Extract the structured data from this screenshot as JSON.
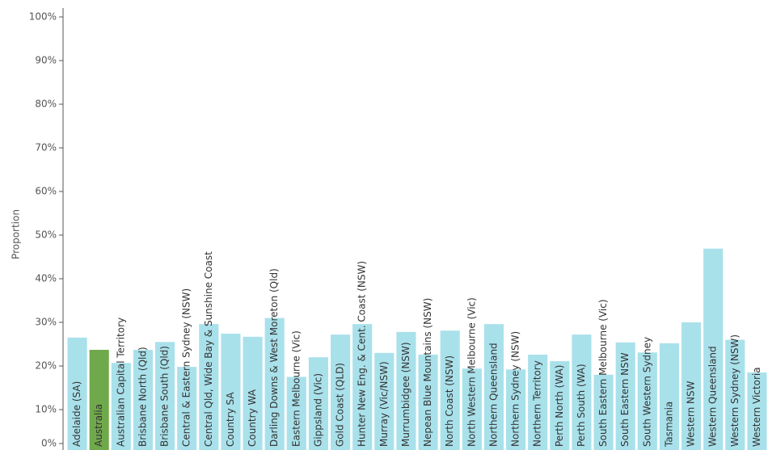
{
  "chart_data": {
    "type": "bar",
    "y_label": "Proportion",
    "categories": [
      "Adelaide (SA)",
      "Australia",
      "Australian Capital Territory",
      "Brisbane North (Qld)",
      "Brisbane South (Qld)",
      "Central & Eastern Sydney (NSW)",
      "Central Qld, Wide Bay & Sunshine Coast",
      "Country SA",
      "Country WA",
      "Darling Downs & West Moreton (Qld)",
      "Eastern Melbourne (Vic)",
      "Gippsland (Vic)",
      "Gold Coast (QLD)",
      "Hunter New Eng. & Cent. Coast (NSW)",
      "Murray (Vic/NSW)",
      "Murrumbidgee (NSW)",
      "Nepean Blue Mountains (NSW)",
      "North Coast (NSW)",
      "North Western Melbourne (Vic)",
      "Northern Queensland",
      "Northern Sydney (NSW)",
      "Northern Territory",
      "Perth North (WA)",
      "Perth South (WA)",
      "South Eastern Melbourne (Vic)",
      "South Eastern NSW",
      "South Western Sydney",
      "Tasmania",
      "Western NSW",
      "Western Queensland",
      "Western Sydney (NSW)",
      "Western Victoria"
    ],
    "values": [
      26.5,
      23.7,
      20.7,
      23.7,
      25.5,
      19.8,
      29.6,
      27.4,
      26.7,
      31,
      17.5,
      22,
      27.2,
      29.6,
      23,
      27.8,
      22.6,
      28.1,
      19.4,
      29.6,
      19.2,
      22.6,
      21.1,
      27.2,
      18,
      25.4,
      23.1,
      25.2,
      30,
      46.9,
      26,
      18.5
    ],
    "colors": [
      "#a9e1eb",
      "#70a94c",
      "#a9e1eb",
      "#a9e1eb",
      "#a9e1eb",
      "#a9e1eb",
      "#a9e1eb",
      "#a9e1eb",
      "#a9e1eb",
      "#a9e1eb",
      "#a9e1eb",
      "#a9e1eb",
      "#a9e1eb",
      "#a9e1eb",
      "#a9e1eb",
      "#a9e1eb",
      "#a9e1eb",
      "#a9e1eb",
      "#a9e1eb",
      "#a9e1eb",
      "#a9e1eb",
      "#a9e1eb",
      "#a9e1eb",
      "#a9e1eb",
      "#a9e1eb",
      "#a9e1eb",
      "#a9e1eb",
      "#a9e1eb",
      "#a9e1eb",
      "#a9e1eb",
      "#a9e1eb",
      "#a9e1eb"
    ],
    "ylim": [
      0,
      100
    ],
    "yticks": [
      {
        "value": 0,
        "label": "0%"
      },
      {
        "value": 10,
        "label": "10%"
      },
      {
        "value": 20,
        "label": "20%"
      },
      {
        "value": 30,
        "label": "30%"
      },
      {
        "value": 40,
        "label": "40%"
      },
      {
        "value": 50,
        "label": "50%"
      },
      {
        "value": 60,
        "label": "60%"
      },
      {
        "value": 70,
        "label": "70%"
      },
      {
        "value": 80,
        "label": "80%"
      },
      {
        "value": 90,
        "label": "90%"
      },
      {
        "value": 100,
        "label": "100%"
      }
    ]
  }
}
